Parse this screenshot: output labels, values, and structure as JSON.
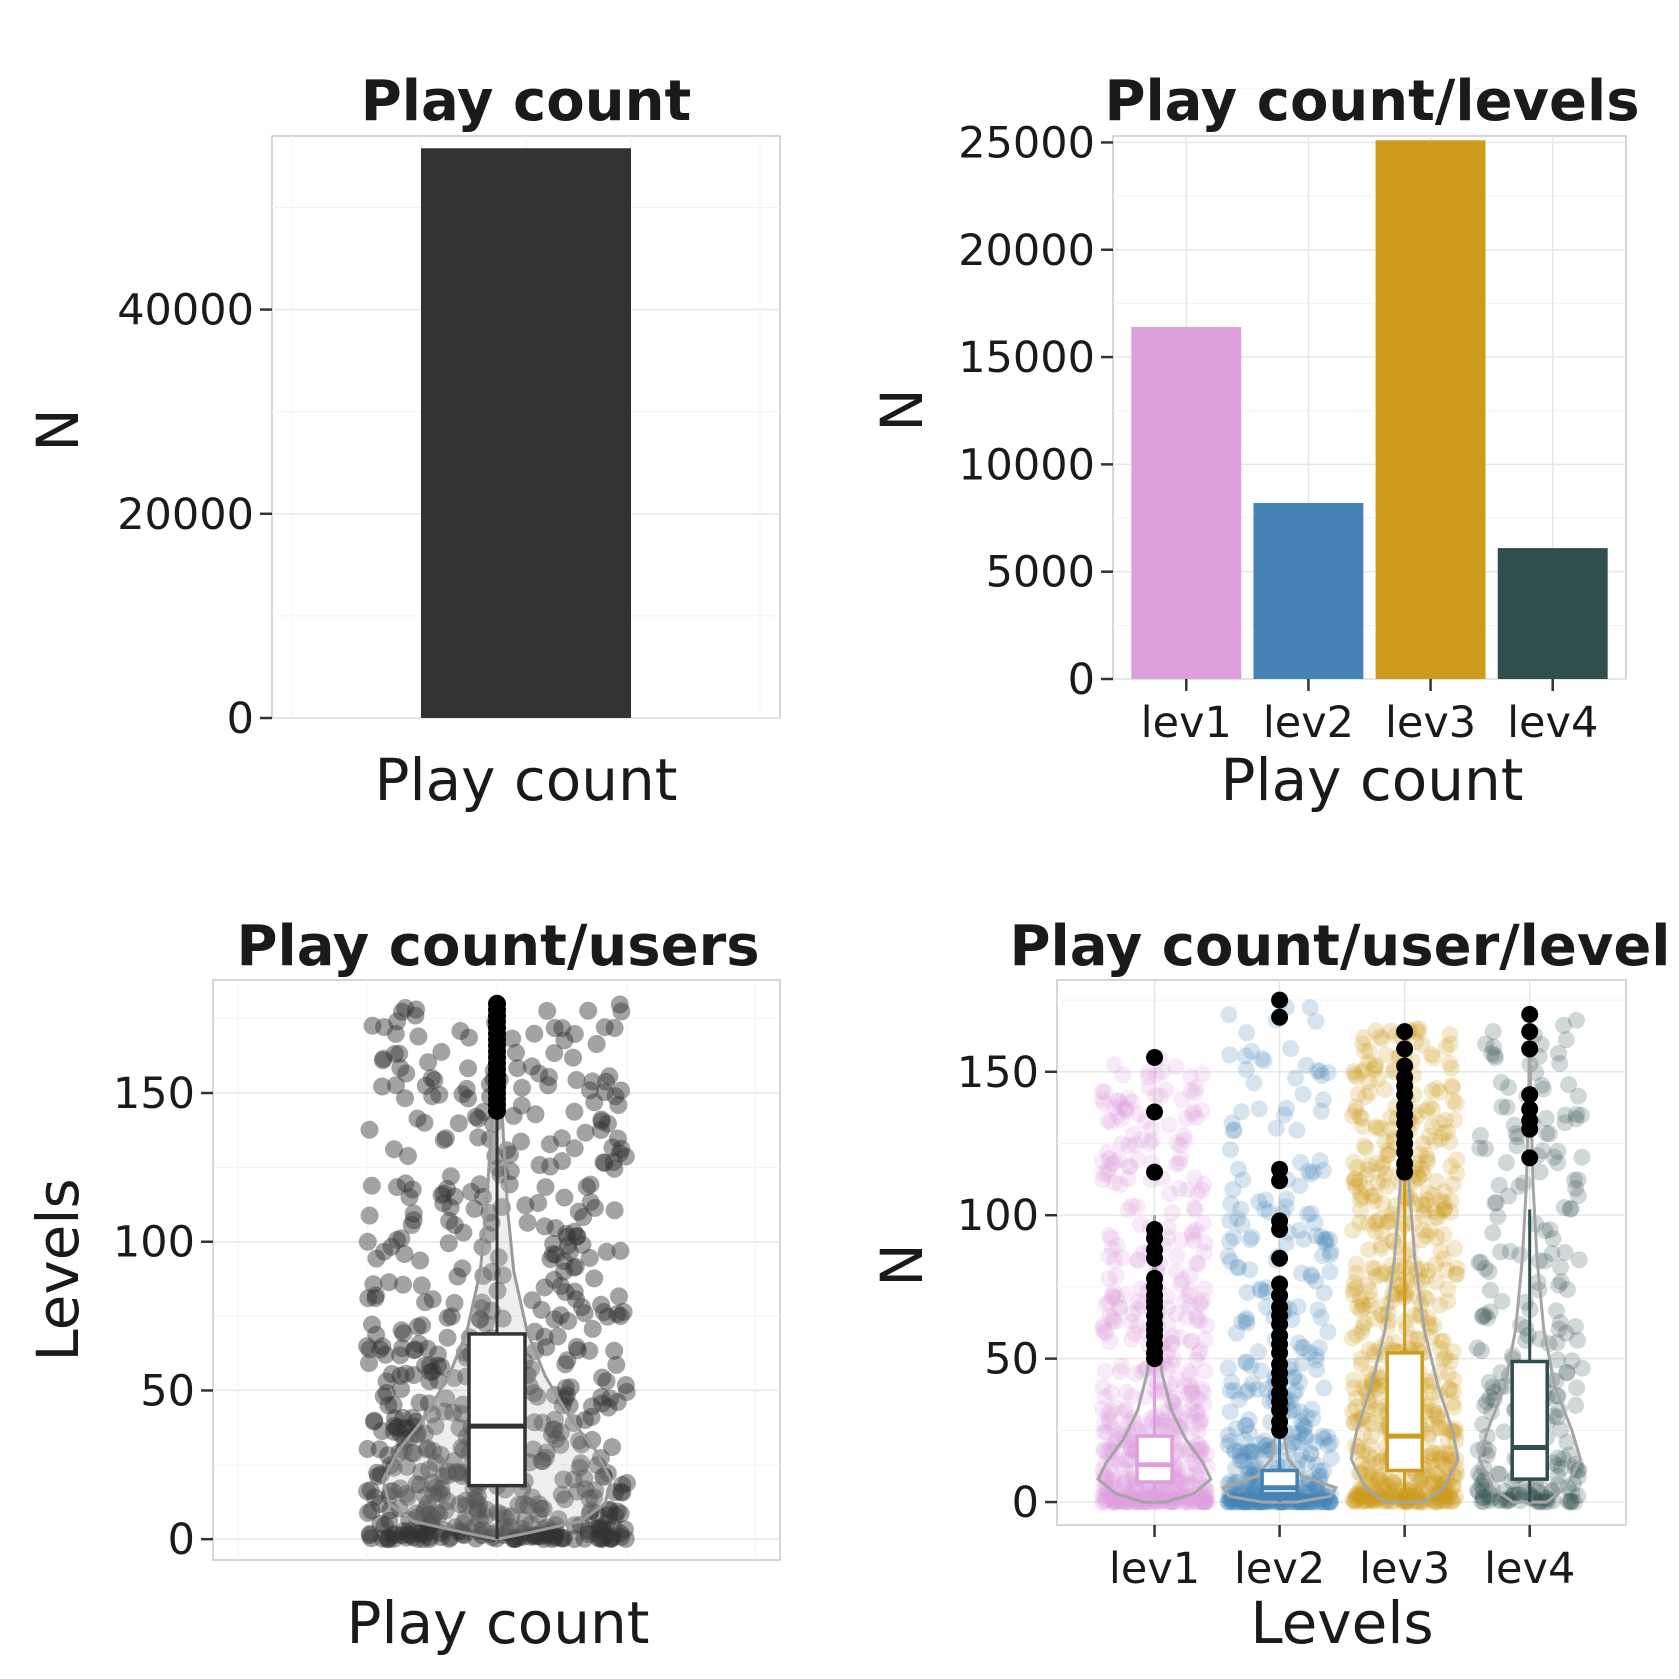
{
  "chart_data": [
    {
      "type": "bar",
      "title": "Play count",
      "xlabel": "Play count",
      "ylabel": "N",
      "categories": [
        ""
      ],
      "values": [
        55800
      ],
      "ylim": [
        0,
        57000
      ],
      "yticks": [
        0,
        20000,
        40000
      ],
      "ytick_labels": [
        "0",
        "20000",
        "40000"
      ],
      "colors": [
        "#333333"
      ],
      "grid": true
    },
    {
      "type": "bar",
      "title": "Play count/levels",
      "xlabel": "Play count",
      "ylabel": "N",
      "categories": [
        "lev1",
        "lev2",
        "lev3",
        "lev4"
      ],
      "values": [
        16400,
        8200,
        25100,
        6100
      ],
      "ylim": [
        0,
        25300
      ],
      "yticks": [
        0,
        5000,
        10000,
        15000,
        20000,
        25000
      ],
      "ytick_labels": [
        "0",
        "5000",
        "10000",
        "15000",
        "20000",
        "25000"
      ],
      "colors": [
        "#DDA0DD",
        "#4682B4",
        "#CD9B1D",
        "#2F4F4F"
      ],
      "grid": true
    },
    {
      "type": "scatter",
      "subtype": "violin + boxplot + jittered points",
      "title": "Play count/users",
      "xlabel": "Play count",
      "ylabel": "Levels",
      "ylim": [
        -7,
        188
      ],
      "yticks": [
        0,
        50,
        100,
        150
      ],
      "ytick_labels": [
        "0",
        "50",
        "100",
        "150"
      ],
      "box": {
        "min": 0,
        "q1": 18,
        "median": 38,
        "q3": 69,
        "whisker_high": 142
      },
      "outliers": [
        144,
        146,
        148,
        150,
        152,
        154,
        156,
        158,
        160,
        162,
        164,
        166,
        168,
        170,
        172,
        174,
        176,
        178,
        180
      ],
      "point_color": "#333333",
      "grid": true
    },
    {
      "type": "scatter",
      "subtype": "violin + boxplot + jittered points",
      "title": "Play count/user/level",
      "xlabel": "Levels",
      "ylabel": "N",
      "categories": [
        "lev1",
        "lev2",
        "lev3",
        "lev4"
      ],
      "ylim": [
        -8,
        182
      ],
      "yticks": [
        0,
        50,
        100,
        150
      ],
      "ytick_labels": [
        "0",
        "50",
        "100",
        "150"
      ],
      "colors": [
        "#DDA0DD",
        "#4682B4",
        "#CD9B1D",
        "#2F4F4F"
      ],
      "boxes": [
        {
          "min": 0,
          "q1": 7,
          "median": 13,
          "q3": 23,
          "whisker_high": 48
        },
        {
          "min": 0,
          "q1": 3,
          "median": 5,
          "q3": 11,
          "whisker_high": 23
        },
        {
          "min": 0,
          "q1": 11,
          "median": 23,
          "q3": 52,
          "whisker_high": 112
        },
        {
          "min": 0,
          "q1": 8,
          "median": 19,
          "q3": 49,
          "whisker_high": 102
        }
      ],
      "outliers": [
        [
          50,
          52,
          55,
          58,
          60,
          62,
          65,
          68,
          70,
          72,
          75,
          78,
          85,
          88,
          92,
          95,
          115,
          136,
          155
        ],
        [
          25,
          28,
          32,
          35,
          38,
          42,
          45,
          48,
          52,
          55,
          58,
          62,
          65,
          68,
          72,
          76,
          85,
          95,
          98,
          112,
          116,
          169,
          175
        ],
        [
          115,
          118,
          122,
          125,
          128,
          132,
          135,
          138,
          142,
          145,
          148,
          152,
          158,
          164
        ],
        [
          120,
          130,
          133,
          137,
          142,
          158,
          164,
          170
        ]
      ],
      "grid": true
    }
  ]
}
